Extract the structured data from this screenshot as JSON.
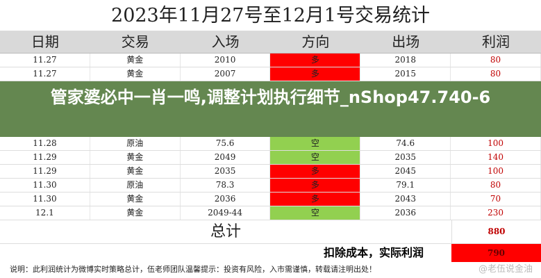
{
  "title": "2023年11月27号至12月1号交易统计",
  "headers": [
    "日期",
    "交易",
    "入场",
    "方向",
    "出场",
    "利润"
  ],
  "rows": [
    {
      "date": "11.27",
      "asset": "黄金",
      "entry": "2010",
      "dir": "多",
      "exit": "2018",
      "pl": "80"
    },
    {
      "date": "11.27",
      "asset": "黄金",
      "entry": "2007",
      "dir": "多",
      "exit": "2015",
      "pl": "80"
    },
    {
      "date": "11.28",
      "asset": "原油",
      "entry": "75.6",
      "dir": "空",
      "exit": "74.6",
      "pl": "100"
    },
    {
      "date": "11.29",
      "asset": "黄金",
      "entry": "2049",
      "dir": "空",
      "exit": "2035",
      "pl": "140"
    },
    {
      "date": "11.29",
      "asset": "黄金",
      "entry": "2035",
      "dir": "多",
      "exit": "2045",
      "pl": "100"
    },
    {
      "date": "11.30",
      "asset": "原油",
      "entry": "78.3",
      "dir": "多",
      "exit": "79.1",
      "pl": "80"
    },
    {
      "date": "11.30",
      "asset": "黄金",
      "entry": "2036",
      "dir": "多",
      "exit": "2043",
      "pl": "70"
    },
    {
      "date": "12.1",
      "asset": "黄金",
      "entry": "2049-44",
      "dir": "空",
      "exit": "2036",
      "pl": "230"
    }
  ],
  "total": {
    "label": "总计",
    "value": "880"
  },
  "deduction": {
    "label": "扣除成本，实际利润",
    "value": "790"
  },
  "note": "说明：此利润统计为微博实时策略总计，伍老师团队温馨提示：投资有风险，入市需谨慎，转载请注明出处！",
  "watermark": "@老伍说金油",
  "overlay": "管家婆必中一肖一鸣,调整计划执行细节_nShop47.740-6",
  "colors": {
    "long": "#ff0000",
    "short": "#92d050",
    "profit": "#c00000"
  }
}
